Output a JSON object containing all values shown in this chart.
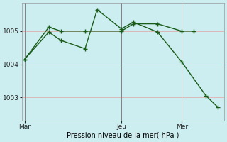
{
  "xlabel": "Pression niveau de la mer( hPa )",
  "background_color": "#cceef0",
  "grid_color": "#ddb8b8",
  "line_color": "#1a5c1a",
  "xtick_labels": [
    "Mar",
    "Jeu",
    "Mer"
  ],
  "xtick_positions": [
    0,
    8,
    13
  ],
  "ytick_values": [
    1003,
    1004,
    1005
  ],
  "ylim": [
    1002.3,
    1005.85
  ],
  "xlim": [
    -0.2,
    16.5
  ],
  "series1_x": [
    0,
    2,
    3,
    5,
    8,
    9,
    11,
    13,
    14
  ],
  "series1_y": [
    1004.15,
    1005.12,
    1005.0,
    1005.0,
    1005.0,
    1005.22,
    1005.22,
    1005.0,
    1005.0
  ],
  "series2_x": [
    0,
    2,
    3,
    5,
    6,
    8,
    9,
    11,
    13,
    15,
    16
  ],
  "series2_y": [
    1004.15,
    1004.97,
    1004.72,
    1004.47,
    1005.65,
    1005.07,
    1005.27,
    1004.97,
    1004.07,
    1003.05,
    1002.7
  ],
  "linewidth": 1.0,
  "marker_size": 4
}
